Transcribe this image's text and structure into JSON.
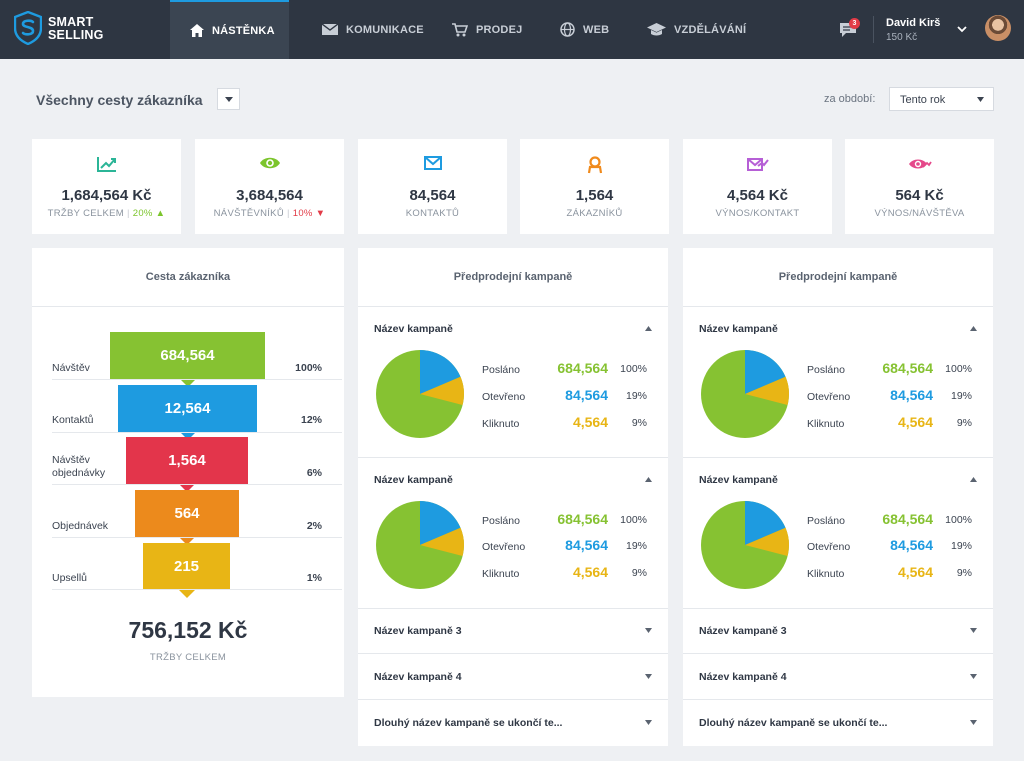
{
  "brand": {
    "line1": "SMART",
    "line2": "SELLING"
  },
  "nav": [
    {
      "label": "NÁSTĚNKA",
      "icon": "home-icon",
      "active": true
    },
    {
      "label": "KOMUNIKACE",
      "icon": "envelope-icon",
      "active": false
    },
    {
      "label": "PRODEJ",
      "icon": "cart-icon",
      "active": false
    },
    {
      "label": "WEB",
      "icon": "globe-icon",
      "active": false
    },
    {
      "label": "VZDĚLÁVÁNÍ",
      "icon": "graduation-cap-icon",
      "active": false
    }
  ],
  "user": {
    "name": "David Kirš",
    "credit": "150 Kč",
    "notifications": "3"
  },
  "page": {
    "title": "Všechny cesty zákazníka",
    "period_label": "za období:",
    "period_value": "Tento rok"
  },
  "kpis": [
    {
      "value": "1,684,564 Kč",
      "label": "TRŽBY CELKEM",
      "delta": "20%",
      "trend": "up",
      "icon": "trend-chart-icon",
      "color": "#2bb597"
    },
    {
      "value": "3,684,564",
      "label": "NÁVŠTĚVNÍKŮ",
      "delta": "10%",
      "trend": "down",
      "icon": "eye-icon",
      "color": "#7cc52c"
    },
    {
      "value": "84,564",
      "label": "KONTAKTŮ",
      "icon": "envelope-icon",
      "color": "#1e9be0"
    },
    {
      "value": "1,564",
      "label": "ZÁKAZNÍKŮ",
      "icon": "user-icon",
      "color": "#f08a1c"
    },
    {
      "value": "4,564 Kč",
      "label": "VÝNOS/KONTAKT",
      "icon": "mail-revenue-icon",
      "color": "#b65fd6"
    },
    {
      "value": "564 Kč",
      "label": "VÝNOS/NÁVŠTĚVA",
      "icon": "eye-revenue-icon",
      "color": "#e5488a"
    }
  ],
  "funnel": {
    "title": "Cesta zákazníka",
    "rows": [
      {
        "label": "Návštěv",
        "value": "684,564",
        "pct": "100%",
        "color": "#86c232"
      },
      {
        "label": "Kontaktů",
        "value": "12,564",
        "pct": "12%",
        "color": "#1e9be0"
      },
      {
        "label": "Návštěv objednávky",
        "value": "1,564",
        "pct": "6%",
        "color": "#e3354b"
      },
      {
        "label": "Objednávek",
        "value": "564",
        "pct": "2%",
        "color": "#ec8a1c"
      },
      {
        "label": "Upsellů",
        "value": "215",
        "pct": "1%",
        "color": "#e8b515"
      }
    ],
    "total": "756,152 Kč",
    "total_label": "TRŽBY CELKEM"
  },
  "campaign_panels": [
    {
      "title": "Předprodejní kampaně",
      "expanded": [
        {
          "name": "Název kampaně",
          "stats": [
            {
              "label": "Posláno",
              "value": "684,564",
              "pct": "100%",
              "color": "#86c232"
            },
            {
              "label": "Otevřeno",
              "value": "84,564",
              "pct": "19%",
              "color": "#1e9be0"
            },
            {
              "label": "Kliknuto",
              "value": "4,564",
              "pct": "9%",
              "color": "#e8b515"
            }
          ]
        },
        {
          "name": "Název kampaně",
          "stats": [
            {
              "label": "Posláno",
              "value": "684,564",
              "pct": "100%",
              "color": "#86c232"
            },
            {
              "label": "Otevřeno",
              "value": "84,564",
              "pct": "19%",
              "color": "#1e9be0"
            },
            {
              "label": "Kliknuto",
              "value": "4,564",
              "pct": "9%",
              "color": "#e8b515"
            }
          ]
        }
      ],
      "collapsed": [
        "Název kampaně 3",
        "Název kampaně 4",
        "Dlouhý název kampaně se ukončí te..."
      ]
    },
    {
      "title": "Předprodejní kampaně",
      "expanded": [
        {
          "name": "Název kampaně",
          "stats": [
            {
              "label": "Posláno",
              "value": "684,564",
              "pct": "100%",
              "color": "#86c232"
            },
            {
              "label": "Otevřeno",
              "value": "84,564",
              "pct": "19%",
              "color": "#1e9be0"
            },
            {
              "label": "Kliknuto",
              "value": "4,564",
              "pct": "9%",
              "color": "#e8b515"
            }
          ]
        },
        {
          "name": "Název kampaně",
          "stats": [
            {
              "label": "Posláno",
              "value": "684,564",
              "pct": "100%",
              "color": "#86c232"
            },
            {
              "label": "Otevřeno",
              "value": "84,564",
              "pct": "19%",
              "color": "#1e9be0"
            },
            {
              "label": "Kliknuto",
              "value": "4,564",
              "pct": "9%",
              "color": "#e8b515"
            }
          ]
        }
      ],
      "collapsed": [
        "Název kampaně 3",
        "Název kampaně 4",
        "Dlouhý název kampaně se ukončí te..."
      ]
    }
  ]
}
